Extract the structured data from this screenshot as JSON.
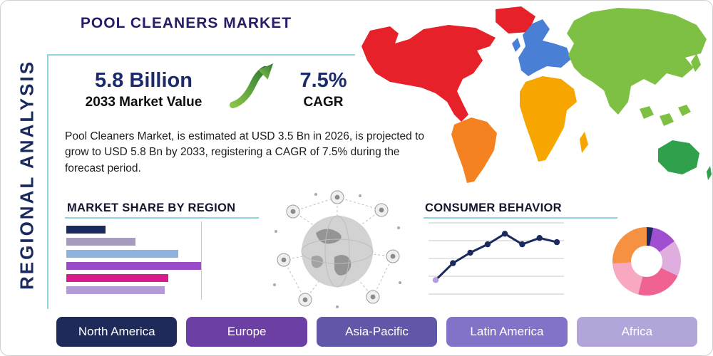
{
  "title": "POOL CLEANERS MARKET",
  "sidebar_label": "REGIONAL ANALYSIS",
  "stats": {
    "market_value": "5.8 Billion",
    "market_value_label": "2033 Market Value",
    "cagr_value": "7.5%",
    "cagr_label": "CAGR"
  },
  "description": "Pool Cleaners Market, is estimated at USD 3.5 Bn in 2026, is projected to grow to USD 5.8 Bn by 2033, registering a CAGR of 7.5% during the forecast period.",
  "sections": {
    "market_share_title": "MARKET SHARE BY REGION",
    "consumer_behavior_title": "CONSUMER BEHAVIOR"
  },
  "regions": [
    {
      "label": "North America",
      "color": "#1e2a5a"
    },
    {
      "label": "Europe",
      "color": "#6c3fa4"
    },
    {
      "label": "Asia-Pacific",
      "color": "#6157a8"
    },
    {
      "label": "Latin America",
      "color": "#8272c8"
    },
    {
      "label": "Africa",
      "color": "#b2a5d9"
    }
  ],
  "accent": {
    "underline_color": "#8fd3df",
    "navy": "#1b2a5e",
    "arrow_green_light": "#8bc34a",
    "arrow_green_dark": "#2e7d32"
  },
  "map": {
    "continents": {
      "north-america": "#e62129",
      "greenland": "#e62129",
      "south-america": "#f58220",
      "europe": "#4a7fd6",
      "africa": "#f7a600",
      "asia": "#7ec044",
      "australia": "#2fa04c"
    }
  },
  "chart_data": [
    {
      "id": "market_share_bars",
      "type": "bar",
      "orientation": "horizontal",
      "title": "MARKET SHARE BY REGION",
      "values": [
        12,
        21,
        34,
        41,
        31,
        30
      ],
      "colors": [
        "#1b2a5e",
        "#a89bc0",
        "#8fb3e0",
        "#9b4bc8",
        "#d81b8c",
        "#b49bd8"
      ],
      "xlim": [
        0,
        45
      ],
      "grid": true,
      "legend": "none"
    },
    {
      "id": "consumer_behavior_line",
      "type": "line",
      "title": "CONSUMER BEHAVIOR",
      "x": [
        1,
        2,
        3,
        4,
        5,
        6,
        7,
        8
      ],
      "values": [
        1.2,
        2.8,
        3.8,
        4.6,
        5.6,
        4.6,
        5.2,
        4.8
      ],
      "ylim": [
        0,
        6.5
      ],
      "grid": true,
      "line_color": "#1b2a5e",
      "marker_color": "#1b2a5e",
      "first_marker_color": "#b39ddb"
    },
    {
      "id": "consumer_donut",
      "type": "pie",
      "donut": true,
      "slices": [
        {
          "label": "navy-slice",
          "value": 3,
          "color": "#1c2960"
        },
        {
          "label": "violet-slice",
          "value": 12,
          "color": "#a04fd0"
        },
        {
          "label": "lavender-slice",
          "value": 17,
          "color": "#e0aede"
        },
        {
          "label": "pink-slice",
          "value": 22,
          "color": "#f06292"
        },
        {
          "label": "light-pink-slice",
          "value": 20,
          "color": "#f8a8c0"
        },
        {
          "label": "orange-slice",
          "value": 26,
          "color": "#f59140"
        }
      ]
    }
  ]
}
